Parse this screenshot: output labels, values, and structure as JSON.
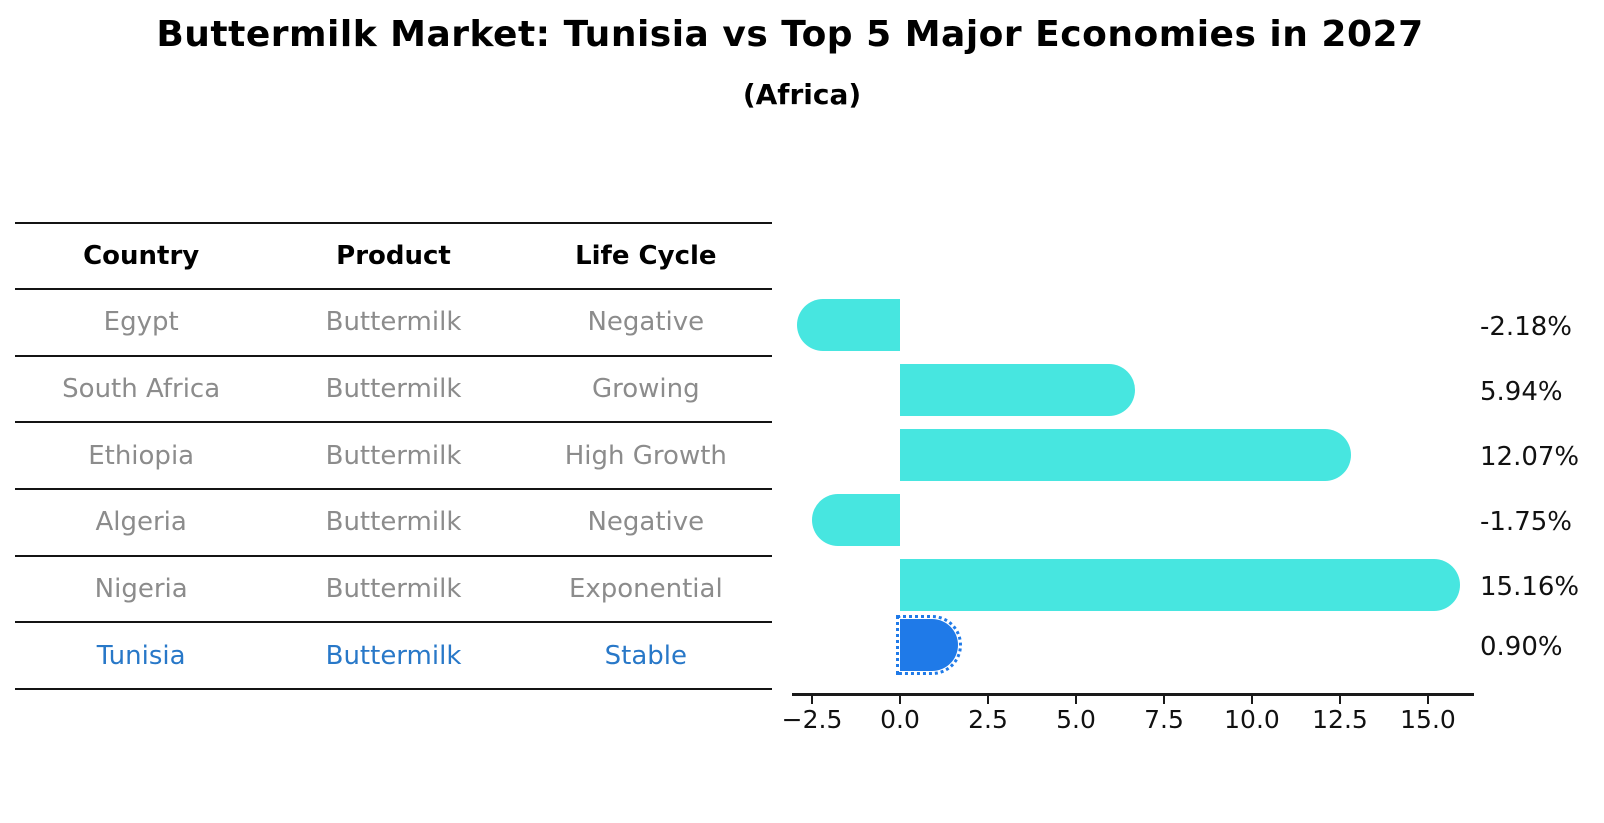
{
  "title": "Buttermilk Market: Tunisia vs Top 5 Major Economies in 2027",
  "subtitle": "(Africa)",
  "table": {
    "headers": {
      "country": "Country",
      "product": "Product",
      "life_cycle": "Life Cycle"
    },
    "rows": [
      {
        "country": "Egypt",
        "product": "Buttermilk",
        "life_cycle": "Negative"
      },
      {
        "country": "South Africa",
        "product": "Buttermilk",
        "life_cycle": "Growing"
      },
      {
        "country": "Ethiopia",
        "product": "Buttermilk",
        "life_cycle": "High Growth"
      },
      {
        "country": "Algeria",
        "product": "Buttermilk",
        "life_cycle": "Negative"
      },
      {
        "country": "Nigeria",
        "product": "Buttermilk",
        "life_cycle": "Exponential"
      },
      {
        "country": "Tunisia",
        "product": "Buttermilk",
        "life_cycle": "Stable"
      }
    ],
    "highlight_row": "Tunisia",
    "highlight_text_color": "#2878c8",
    "body_text_color": "#8c8c8c"
  },
  "chart_data": {
    "type": "bar",
    "orientation": "horizontal",
    "categories": [
      "Egypt",
      "South Africa",
      "Ethiopia",
      "Algeria",
      "Nigeria",
      "Tunisia"
    ],
    "values": [
      -2.18,
      5.94,
      12.07,
      -1.75,
      15.16,
      0.9
    ],
    "value_labels": [
      "-2.18%",
      "5.94%",
      "12.07%",
      "-1.75%",
      "15.16%",
      "0.90%"
    ],
    "title": "Buttermilk Market: Tunisia vs Top 5 Major Economies in 2027",
    "subtitle": "(Africa)",
    "xlabel": "",
    "ylabel": "",
    "xlim": [
      -3.1,
      16.3
    ],
    "x_ticks": [
      -2.5,
      0.0,
      2.5,
      5.0,
      7.5,
      10.0,
      12.5,
      15.0
    ],
    "x_tick_labels": [
      "−2.5",
      "0.0",
      "2.5",
      "5.0",
      "7.5",
      "10.0",
      "12.5",
      "15.0"
    ],
    "grid": false,
    "legend": false,
    "bar_color": "#47e6e0",
    "highlight_color": "#1f7ae8",
    "highlight_index": 5,
    "highlight_edge_style": "dotted",
    "bar_cap_style": "rounded-outer-end"
  }
}
